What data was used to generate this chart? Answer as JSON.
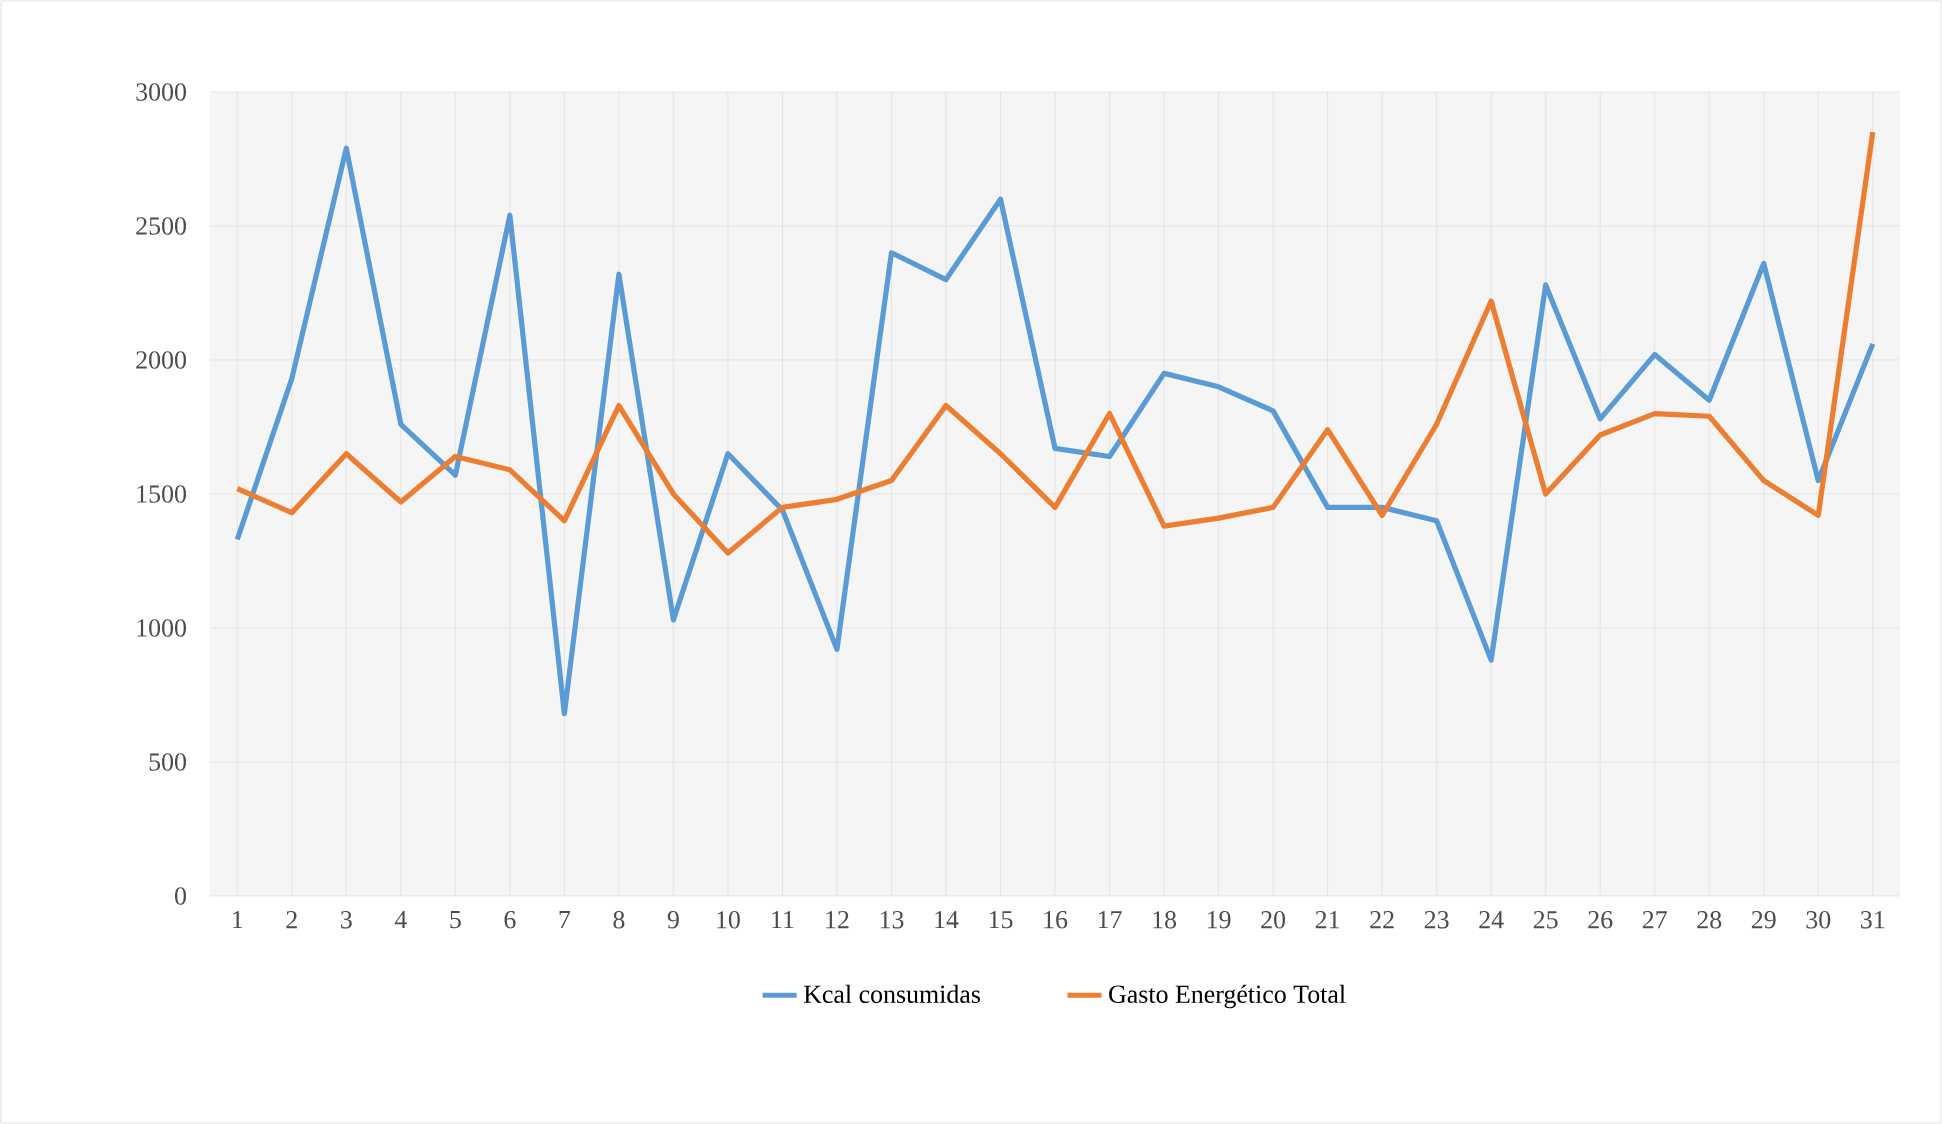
{
  "chart_data": {
    "type": "line",
    "categories": [
      "1",
      "2",
      "3",
      "4",
      "5",
      "6",
      "7",
      "8",
      "9",
      "10",
      "11",
      "12",
      "13",
      "14",
      "15",
      "16",
      "17",
      "18",
      "19",
      "20",
      "21",
      "22",
      "23",
      "24",
      "25",
      "26",
      "27",
      "28",
      "29",
      "30",
      "31"
    ],
    "series": [
      {
        "name": "Kcal consumidas",
        "color": "#5b9bd5",
        "values": [
          1330,
          1930,
          2790,
          1760,
          1570,
          2540,
          680,
          2320,
          1030,
          1650,
          1440,
          920,
          2400,
          2300,
          2600,
          1670,
          1640,
          1950,
          1900,
          1810,
          1450,
          1450,
          1400,
          880,
          2280,
          1780,
          2020,
          1850,
          2360,
          1550,
          2060
        ]
      },
      {
        "name": "Gasto Energético Total",
        "color": "#ed7d31",
        "values": [
          1520,
          1430,
          1650,
          1470,
          1640,
          1590,
          1400,
          1830,
          1500,
          1280,
          1450,
          1480,
          1550,
          1830,
          1650,
          1450,
          1800,
          1380,
          1410,
          1450,
          1740,
          1420,
          1760,
          2220,
          1500,
          1720,
          1800,
          1790,
          1550,
          1420,
          2850
        ]
      }
    ],
    "ylim": [
      0,
      3000
    ],
    "yticks": [
      0,
      500,
      1000,
      1500,
      2000,
      2500,
      3000
    ],
    "grid": true,
    "legend": "bottom",
    "marker": "none",
    "line_style": "solid"
  }
}
